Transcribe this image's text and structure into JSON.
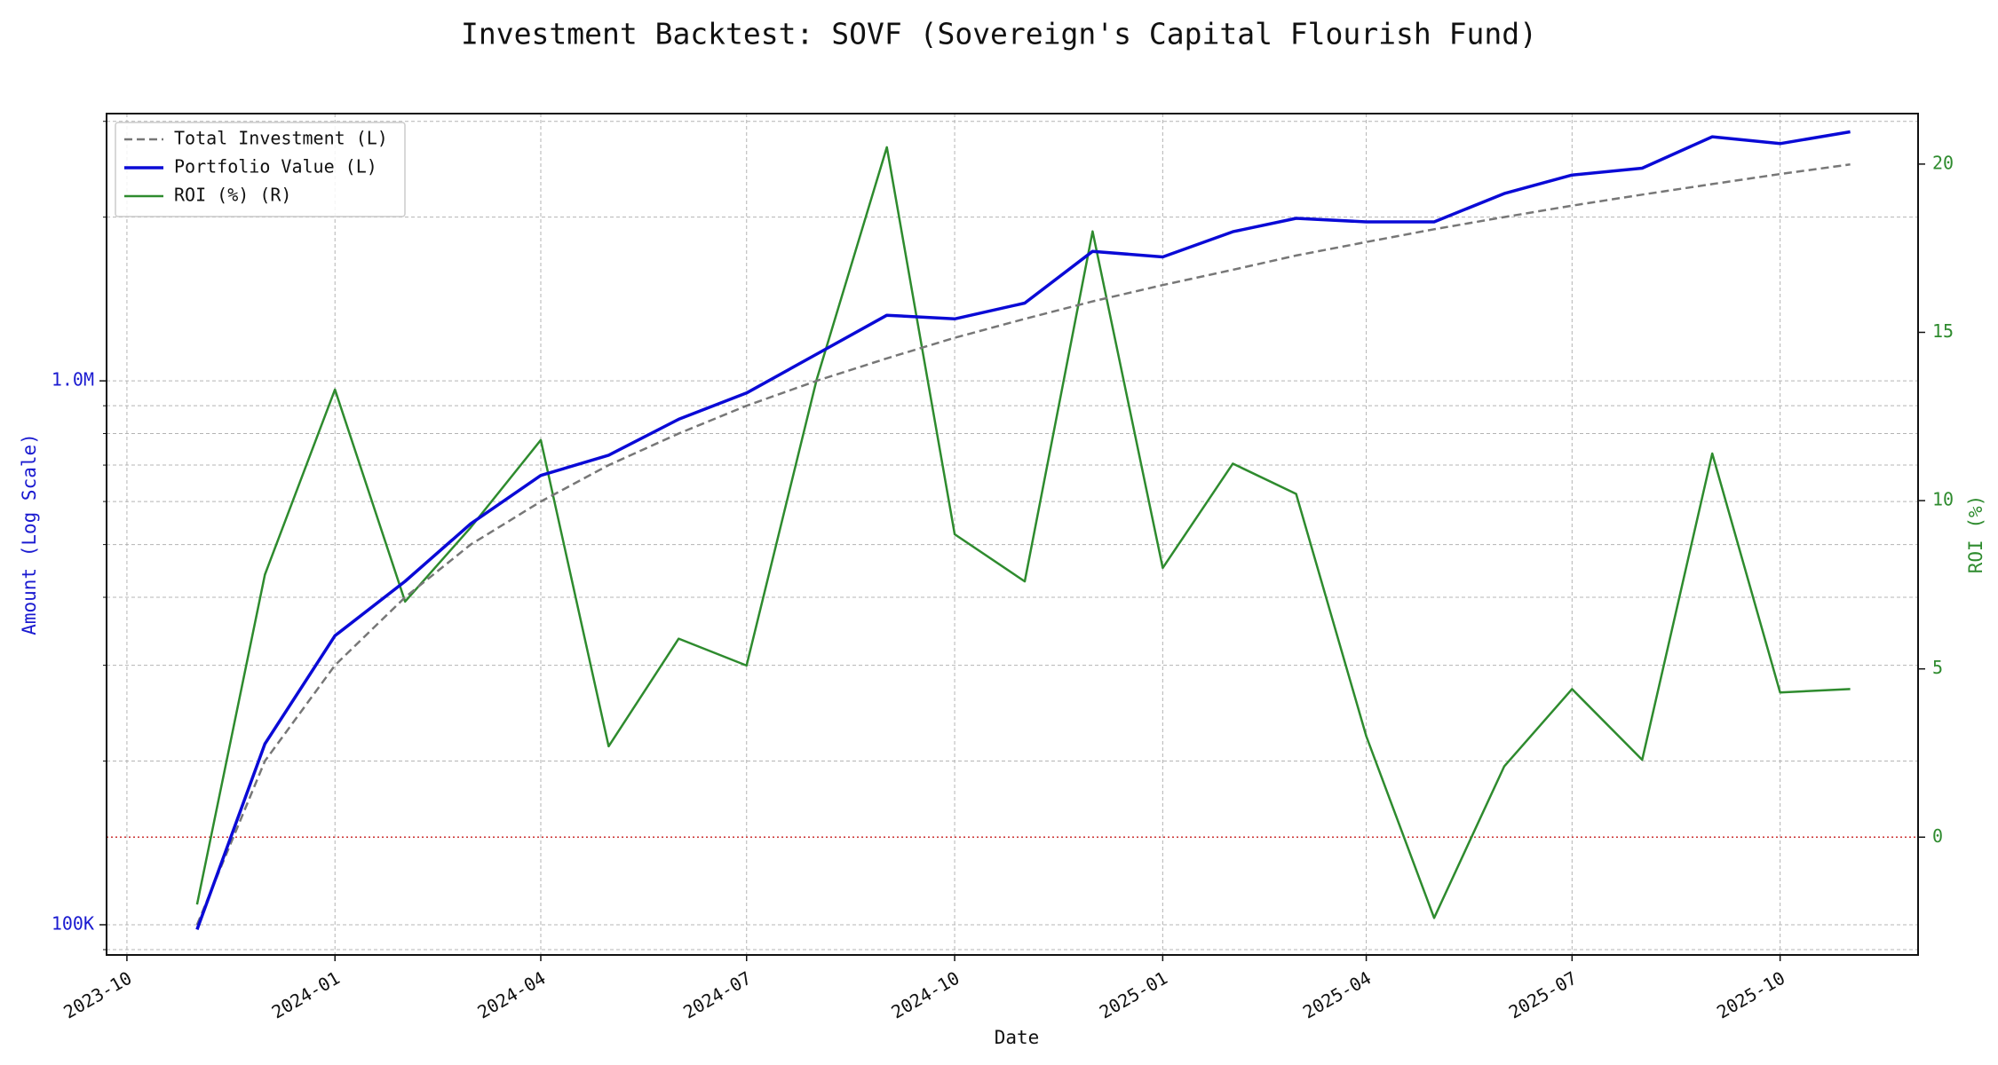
{
  "chart_data": {
    "type": "line",
    "title": "Investment Backtest: SOVF (Sovereign's Capital Flourish Fund)",
    "xlabel": "Date",
    "ylabel_left": "Amount (Log Scale)",
    "ylabel_right": "ROI (%)",
    "x_ticks": [
      "2023-10",
      "2024-01",
      "2024-04",
      "2024-07",
      "2024-10",
      "2025-01",
      "2025-04",
      "2025-07",
      "2025-10"
    ],
    "y_left_scale": "log",
    "y_left_range": [
      88000,
      3100000
    ],
    "y_left_ticks": [
      {
        "value": 100000,
        "label": "100K"
      },
      {
        "value": 1000000,
        "label": "1.0M"
      }
    ],
    "y_right_range": [
      -3.5,
      21.5
    ],
    "y_right_ticks": [
      0,
      5,
      10,
      15,
      20
    ],
    "x_range": [
      "2023-09-22",
      "2025-12-01"
    ],
    "grid": true,
    "legend_position": "top-left",
    "x": [
      "2023-11-01",
      "2023-12-01",
      "2024-01-01",
      "2024-02-01",
      "2024-03-01",
      "2024-04-01",
      "2024-05-01",
      "2024-06-01",
      "2024-07-01",
      "2024-08-01",
      "2024-09-01",
      "2024-10-01",
      "2024-11-01",
      "2024-12-01",
      "2025-01-01",
      "2025-02-01",
      "2025-03-01",
      "2025-04-01",
      "2025-05-01",
      "2025-06-01",
      "2025-07-01",
      "2025-08-01",
      "2025-09-01",
      "2025-10-01",
      "2025-11-01"
    ],
    "series": [
      {
        "name": "Total Investment (L)",
        "axis": "left",
        "color": "#777777",
        "style": "dashed",
        "values": [
          100000,
          200000,
          300000,
          400000,
          500000,
          600000,
          700000,
          800000,
          900000,
          1000000,
          1100000,
          1200000,
          1300000,
          1400000,
          1500000,
          1600000,
          1700000,
          1800000,
          1900000,
          2000000,
          2100000,
          2200000,
          2300000,
          2400000,
          2500000
        ]
      },
      {
        "name": "Portfolio Value (L)",
        "axis": "left",
        "color": "#0a0ad6",
        "style": "solid",
        "values": [
          98000,
          215000,
          340000,
          428000,
          546000,
          670000,
          730000,
          850000,
          950000,
          1120000,
          1320000,
          1300000,
          1390000,
          1730000,
          1690000,
          1880000,
          1990000,
          1960000,
          1960000,
          2210000,
          2390000,
          2460000,
          2810000,
          2730000,
          2870000
        ]
      },
      {
        "name": "ROI (%) (R)",
        "axis": "right",
        "color": "#2e8b2e",
        "style": "solid",
        "values": [
          -2.0,
          7.8,
          13.3,
          7.0,
          9.2,
          11.8,
          2.7,
          5.9,
          5.1,
          13.6,
          20.5,
          9.0,
          7.6,
          18.0,
          8.0,
          11.1,
          10.2,
          3.0,
          -2.4,
          2.1,
          4.4,
          2.3,
          11.4,
          4.3,
          4.4
        ]
      }
    ],
    "reference_line": {
      "axis": "right",
      "value": 0,
      "color": "#cc3333",
      "style": "dotted"
    }
  }
}
